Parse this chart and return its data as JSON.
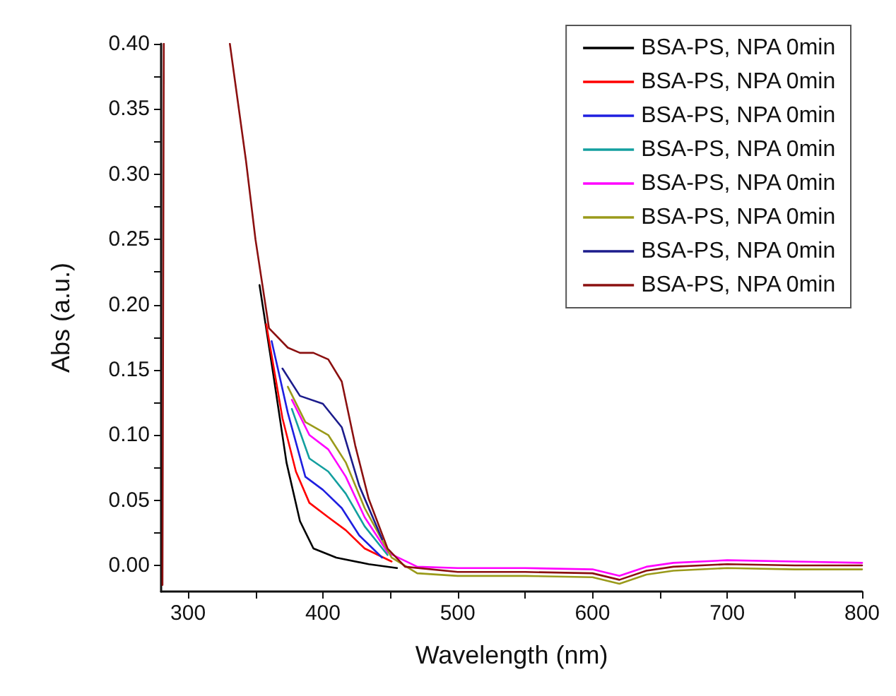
{
  "chart_data": {
    "type": "line",
    "xlabel": "Wavelength (nm)",
    "ylabel": "Abs (a.u.)",
    "xlim": [
      280,
      800
    ],
    "xticks": [
      300,
      400,
      500,
      600,
      700,
      800
    ],
    "ylim": [
      -0.02,
      0.4
    ],
    "yticks": [
      {
        "value": 0,
        "label": "0.00"
      },
      {
        "value": 0.05,
        "label": "0.05"
      },
      {
        "value": 0.1,
        "label": "0.10"
      },
      {
        "value": 0.15,
        "label": "0.15"
      },
      {
        "value": 0.2,
        "label": "0.20"
      },
      {
        "value": 0.25,
        "label": "0.25"
      },
      {
        "value": 0.3,
        "label": "0.30"
      },
      {
        "value": 0.35,
        "label": "0.35"
      },
      {
        "value": 0.4,
        "label": "0.40"
      }
    ],
    "grid": false,
    "legend": "top right",
    "marker": "none",
    "line_style": "solid",
    "series": [
      {
        "name": "BSA-PS, NPA 0min",
        "color": "#000000",
        "x": [
          353,
          363,
          373,
          383,
          393,
          410,
          434,
          455
        ],
        "values": [
          0.215,
          0.148,
          0.079,
          0.034,
          0.013,
          0.006,
          0.001,
          -0.002
        ]
      },
      {
        "name": "BSA-PS, NPA 0min",
        "color": "#ff0000",
        "x": [
          358,
          370,
          380,
          390,
          404,
          417,
          431,
          451
        ],
        "values": [
          0.185,
          0.113,
          0.072,
          0.048,
          0.037,
          0.027,
          0.013,
          0.003
        ]
      },
      {
        "name": "BSA-PS, NPA 0min",
        "color": "#1f1fe0",
        "x": [
          362,
          374,
          387,
          400,
          414,
          427,
          444
        ],
        "values": [
          0.172,
          0.117,
          0.068,
          0.058,
          0.044,
          0.023,
          0.006
        ]
      },
      {
        "name": "BSA-PS, NPA 0min",
        "color": "#139f9f",
        "x": [
          377,
          390,
          404,
          417,
          431,
          448
        ],
        "values": [
          0.12,
          0.082,
          0.072,
          0.055,
          0.03,
          0.008
        ]
      },
      {
        "name": "BSA-PS, NPA 0min",
        "color": "#ff00ff",
        "x": [
          377,
          390,
          404,
          417,
          431,
          448,
          470,
          500,
          550,
          600,
          620,
          640,
          660,
          700,
          750,
          800
        ],
        "values": [
          0.127,
          0.1,
          0.089,
          0.068,
          0.037,
          0.01,
          -0.001,
          -0.002,
          -0.002,
          -0.003,
          -0.008,
          -0.001,
          0.002,
          0.004,
          0.003,
          0.002
        ]
      },
      {
        "name": "BSA-PS, NPA 0min",
        "color": "#9a9a1a",
        "x": [
          374,
          387,
          404,
          417,
          431,
          451,
          470,
          500,
          550,
          600,
          620,
          640,
          660,
          700,
          750,
          800
        ],
        "values": [
          0.137,
          0.11,
          0.1,
          0.079,
          0.044,
          0.006,
          -0.006,
          -0.008,
          -0.008,
          -0.009,
          -0.014,
          -0.007,
          -0.004,
          -0.002,
          -0.003,
          -0.003
        ]
      },
      {
        "name": "BSA-PS, NPA 0min",
        "color": "#1c1c8c",
        "x": [
          370,
          383,
          400,
          414,
          427,
          444
        ],
        "values": [
          0.151,
          0.13,
          0.124,
          0.106,
          0.061,
          0.02
        ]
      },
      {
        "name": "BSA-PS, NPA 0min",
        "color": "#8b1010",
        "x": [
          281,
          282,
          300,
          331,
          343,
          350,
          360,
          374,
          383,
          393,
          404,
          414,
          424,
          434,
          448,
          461,
          500,
          550,
          600,
          620,
          640,
          660,
          700,
          750,
          800
        ],
        "values": [
          -0.015,
          0.4,
          null,
          0.4,
          0.31,
          0.25,
          0.182,
          0.167,
          0.163,
          0.163,
          0.158,
          0.141,
          0.092,
          0.051,
          0.013,
          -0.001,
          -0.005,
          -0.005,
          -0.006,
          -0.011,
          -0.004,
          -0.001,
          0.001,
          0.0,
          0.0
        ]
      }
    ]
  }
}
